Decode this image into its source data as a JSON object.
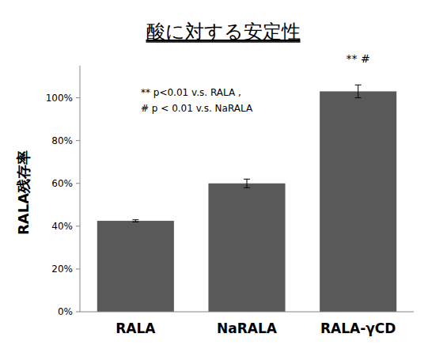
{
  "chart_data": {
    "type": "bar",
    "title": "酸に対する安定性",
    "y_label": "RALA残存率",
    "categories": [
      "RALA",
      "NaRALA",
      "RALA-γCD"
    ],
    "values": [
      42.5,
      60,
      103
    ],
    "errors": [
      0.5,
      2,
      3
    ],
    "color": "#595959",
    "ylim": [
      0,
      115
    ],
    "yticks": [
      {
        "value": 0,
        "label": "0%"
      },
      {
        "value": 20,
        "label": "20%"
      },
      {
        "value": 40,
        "label": "40%"
      },
      {
        "value": 60,
        "label": "60%"
      },
      {
        "value": 80,
        "label": "80%"
      },
      {
        "value": 100,
        "label": "100%"
      }
    ],
    "grid": false,
    "notes": [
      "** p<0.01 v.s. RALA ,",
      "# p < 0.01 v.s. NaRALA"
    ],
    "bar_notes": [
      null,
      null,
      "** #"
    ]
  }
}
